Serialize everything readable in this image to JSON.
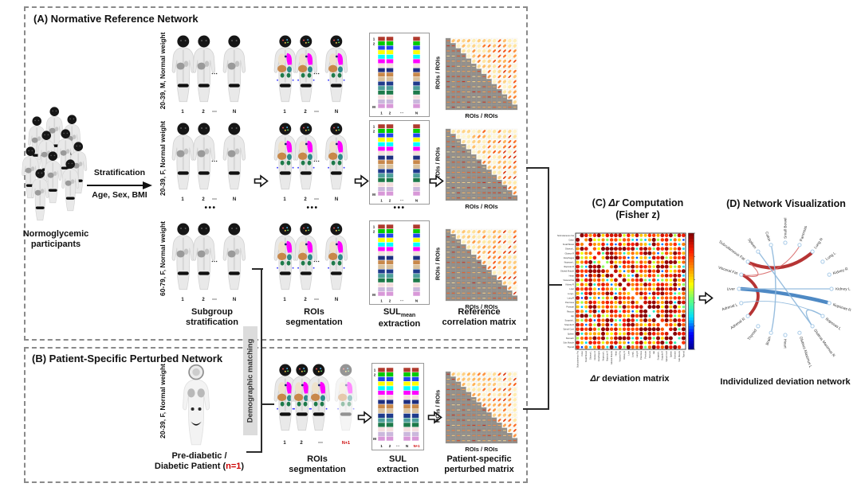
{
  "indices": {
    "one": "1",
    "two": "2",
    "dots": "⋯",
    "n": "N",
    "np1": "N+1",
    "m": "M"
  },
  "colors": {
    "accent_red": "#cc0000",
    "edge_red": "#b02323",
    "edge_blue": "#3f7fbf",
    "sul_bars": [
      "#b03a2e",
      "#00cc00",
      "#2244ee",
      "#ffff00",
      "#00ffff",
      "#ff00ff",
      "#f3e3dc",
      "#1e2f80",
      "#c8884a",
      "#d9c29e",
      "#1f3b8c",
      "#4d9e9a",
      "#1e7a4a",
      "#f5dede",
      "#cbb8dc",
      "#d898d8"
    ]
  },
  "panel_a": {
    "title": "(A) Normative Reference Network",
    "crowd_caption": [
      "Normoglycemic",
      "participants"
    ],
    "strat_label_top": "Stratification",
    "strat_label_bottom": "Age, Sex, BMI",
    "subgroup_labels": [
      "20-39, M, Normal weight",
      "20-39, F, Normal weight",
      "60-79, F, Normal weight"
    ],
    "ellipsis": "•••",
    "captions": {
      "subgroup": [
        "Subgroup",
        "stratification"
      ],
      "rois": [
        "ROIs",
        "segmentation"
      ],
      "sul_main": "SUL",
      "sul_sub": "mean",
      "sul_line2": "extraction",
      "matrix": [
        "Reference",
        "correlation matrix"
      ]
    },
    "axis_label": "ROIs / ROIs"
  },
  "panel_b": {
    "title": "(B) Patient-Specific Perturbed Network",
    "patient_group_label": "20-39, F, Normal weight",
    "patient_caption_line1": "Pre-diabetic /",
    "patient_caption_line2_pre": "Diabetic Patient (",
    "patient_caption_n": "n=1",
    "patient_caption_line2_post": ")",
    "demographic_matching": "Demographic matching",
    "captions": {
      "rois": [
        "ROIs",
        "segmentation"
      ],
      "sul": [
        "SUL",
        "extraction"
      ],
      "matrix": [
        "Patient-specific",
        "perturbed matrix"
      ]
    },
    "axis_label": "ROIs / ROIs"
  },
  "panel_c": {
    "title_pre": "(C) ",
    "title_dr": "Δr",
    "title_post": " Computation",
    "title_line2": "(Fisher z)",
    "caption_dr": "Δr",
    "caption_post": " deviation matrix",
    "matrix_labels": [
      "Subcutaneous Fat",
      "Colon",
      "Small Bowel",
      "Gluteus L",
      "Gluteus R",
      "Esophagus",
      "Iliopsoas L",
      "Iliopsoas R",
      "Gluteal Muscle",
      "Heart",
      "Visceral Fat",
      "Kidney R",
      "Liver",
      "Lung L",
      "Lung R",
      "Pancreas",
      "Prostate",
      "Rectum",
      "Hip",
      "Scapula L",
      "Scapula R",
      "Spinal Cord",
      "Spleen",
      "Stomach",
      "Sub Muscle",
      "Thyroid"
    ]
  },
  "panel_d": {
    "title": "(D) Network Visualization",
    "caption": "Individulized deviation network",
    "nodes": [
      "Small Bowel",
      "Pancreas",
      "Lung R",
      "Lung L",
      "Kidney R",
      "Kidney L",
      "Iliopsoas R",
      "Iliopsoas L",
      "Gluteus Maximus R",
      "Gluteus Maximus L",
      "Heart",
      "Brain",
      "Thyroid",
      "Adrenal R",
      "Adrenal L",
      "Liver",
      "Visceral Fat",
      "Subcutaneous Fat",
      "Spleen",
      "Colon"
    ],
    "edges": [
      {
        "a": 17,
        "b": 2,
        "color": "#b02323",
        "w": 4.2
      },
      {
        "a": 16,
        "b": 13,
        "color": "#b02323",
        "w": 3.8
      },
      {
        "a": 16,
        "b": 1,
        "color": "#d96b6b",
        "w": 1.0
      },
      {
        "a": 17,
        "b": 16,
        "color": "#d96b6b",
        "w": 1.1
      },
      {
        "a": 15,
        "b": 6,
        "color": "#3f7fbf",
        "w": 4.6
      },
      {
        "a": 18,
        "b": 8,
        "color": "#8fb8dc",
        "w": 1.4
      },
      {
        "a": 19,
        "b": 11,
        "color": "#8fb8dc",
        "w": 1.4
      },
      {
        "a": 15,
        "b": 5,
        "color": "#8fb8dc",
        "w": 1.3
      },
      {
        "a": 7,
        "b": 8,
        "color": "#8fb8dc",
        "w": 1.4
      },
      {
        "a": 14,
        "b": 7,
        "color": "#8fb8dc",
        "w": 0.9
      }
    ]
  }
}
